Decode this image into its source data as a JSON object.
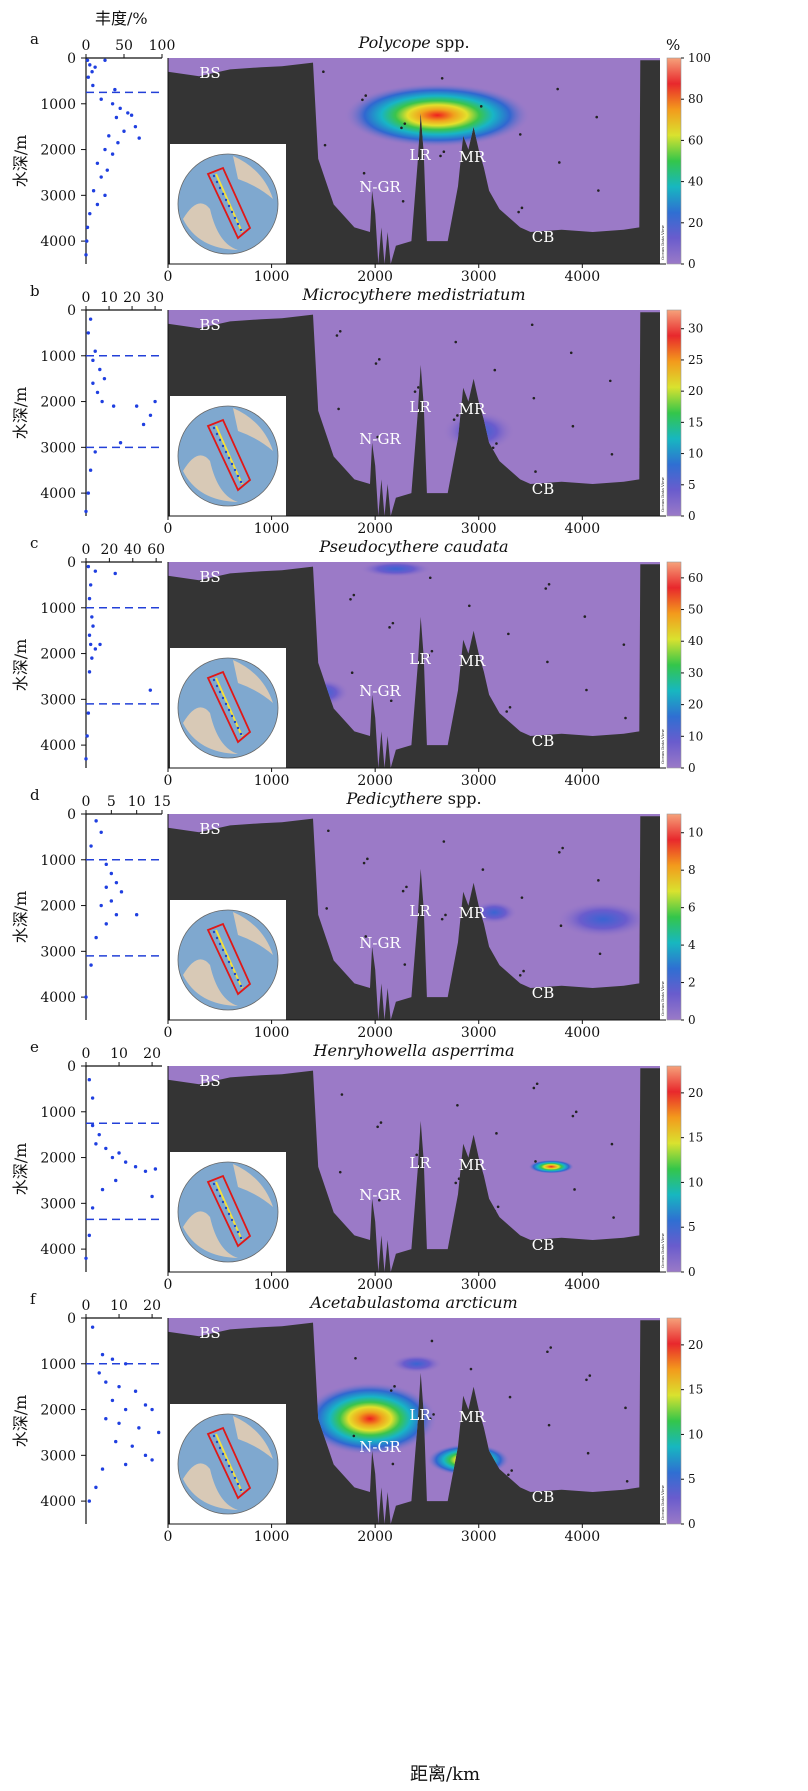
{
  "labels": {
    "top_axis_title": "丰度/%",
    "y_axis_title": "水深/m",
    "x_axis_title": "距离/km",
    "colorbar_unit": "%",
    "odv_credit": "Ocean Data View"
  },
  "colors": {
    "seafloor": "#343434",
    "water": "#9b7ac7",
    "scatter": "#1f3fe0",
    "dash": "#2340d8",
    "colorbar_stops": [
      "#9b7ac7",
      "#6a5ccd",
      "#2f6fd2",
      "#17b7c0",
      "#34c64a",
      "#d9e22f",
      "#f39a1c",
      "#e8282c",
      "#f6a27a"
    ]
  },
  "chart_data": [
    {
      "type": "scatter",
      "panel": "a",
      "title": "Polycope spp.",
      "title_italic": "Polycope",
      "title_suffix": " spp.",
      "abundance_ticks": [
        "0",
        "50",
        "100"
      ],
      "abundance_max": 100,
      "dashed_depths": [
        750
      ],
      "colorbar_ticks": [
        "0",
        "20",
        "40",
        "60",
        "80",
        "100"
      ],
      "colorbar_max": 100,
      "scatter_points": [
        [
          2,
          50
        ],
        [
          5,
          150
        ],
        [
          8,
          300
        ],
        [
          3,
          420
        ],
        [
          12,
          200
        ],
        [
          9,
          600
        ],
        [
          25,
          50
        ],
        [
          38,
          690
        ],
        [
          20,
          900
        ],
        [
          35,
          1000
        ],
        [
          45,
          1100
        ],
        [
          55,
          1200
        ],
        [
          40,
          1300
        ],
        [
          60,
          1250
        ],
        [
          65,
          1500
        ],
        [
          50,
          1600
        ],
        [
          30,
          1700
        ],
        [
          70,
          1750
        ],
        [
          42,
          1850
        ],
        [
          25,
          2000
        ],
        [
          35,
          2100
        ],
        [
          15,
          2300
        ],
        [
          28,
          2450
        ],
        [
          20,
          2600
        ],
        [
          10,
          2900
        ],
        [
          25,
          3000
        ],
        [
          15,
          3200
        ],
        [
          5,
          3400
        ],
        [
          2,
          3700
        ],
        [
          1,
          4000
        ],
        [
          0,
          4300
        ]
      ],
      "hotspots": [
        {
          "x": 2600,
          "y": 1250,
          "rx": 900,
          "ry": 700,
          "peak": 0.95
        }
      ],
      "region_labels": [
        "BS",
        "LR",
        "MR",
        "N-GR",
        "CB"
      ]
    },
    {
      "type": "scatter",
      "panel": "b",
      "title": "Microcythere medistriatum",
      "title_italic": "Microcythere medistriatum",
      "title_suffix": "",
      "abundance_ticks": [
        "0",
        "10",
        "20",
        "30"
      ],
      "abundance_max": 33,
      "dashed_depths": [
        1000,
        3000
      ],
      "colorbar_ticks": [
        "0",
        "5",
        "10",
        "15",
        "20",
        "25",
        "30"
      ],
      "colorbar_max": 33,
      "scatter_points": [
        [
          2,
          200
        ],
        [
          1,
          500
        ],
        [
          4,
          900
        ],
        [
          3,
          1100
        ],
        [
          6,
          1300
        ],
        [
          8,
          1500
        ],
        [
          3,
          1600
        ],
        [
          5,
          1800
        ],
        [
          7,
          2000
        ],
        [
          12,
          2100
        ],
        [
          22,
          2100
        ],
        [
          28,
          2300
        ],
        [
          25,
          2500
        ],
        [
          30,
          2000
        ],
        [
          15,
          2900
        ],
        [
          4,
          3100
        ],
        [
          2,
          3500
        ],
        [
          1,
          4000
        ],
        [
          0,
          4400
        ]
      ],
      "hotspots": [
        {
          "x": 3000,
          "y": 2650,
          "rx": 350,
          "ry": 450,
          "peak": 0.45
        }
      ],
      "region_labels": [
        "BS",
        "LR",
        "MR",
        "N-GR",
        "CB"
      ]
    },
    {
      "type": "scatter",
      "panel": "c",
      "title": "Pseudocythere caudata",
      "title_italic": "Pseudocythere caudata",
      "title_suffix": "",
      "abundance_ticks": [
        "0",
        "20",
        "40",
        "60"
      ],
      "abundance_max": 65,
      "dashed_depths": [
        1000,
        3100
      ],
      "colorbar_ticks": [
        "0",
        "10",
        "20",
        "30",
        "40",
        "50",
        "60"
      ],
      "colorbar_max": 65,
      "scatter_points": [
        [
          2,
          100
        ],
        [
          8,
          200
        ],
        [
          25,
          250
        ],
        [
          4,
          500
        ],
        [
          3,
          800
        ],
        [
          5,
          1200
        ],
        [
          6,
          1400
        ],
        [
          3,
          1600
        ],
        [
          4,
          1800
        ],
        [
          8,
          1900
        ],
        [
          12,
          1800
        ],
        [
          5,
          2100
        ],
        [
          3,
          2400
        ],
        [
          55,
          2800
        ],
        [
          2,
          3300
        ],
        [
          1,
          3800
        ],
        [
          0,
          4300
        ]
      ],
      "hotspots": [
        {
          "x": 1500,
          "y": 2850,
          "rx": 250,
          "ry": 300,
          "peak": 0.35
        },
        {
          "x": 2200,
          "y": 150,
          "rx": 350,
          "ry": 180,
          "peak": 0.25
        }
      ],
      "region_labels": [
        "BS",
        "LR",
        "MR",
        "N-GR",
        "CB"
      ]
    },
    {
      "type": "scatter",
      "panel": "d",
      "title": "Pedicythere spp.",
      "title_italic": "Pedicythere",
      "title_suffix": " spp.",
      "abundance_ticks": [
        "0",
        "5",
        "10",
        "15"
      ],
      "abundance_max": 15,
      "dashed_depths": [
        1000,
        3100
      ],
      "colorbar_ticks": [
        "0",
        "2",
        "4",
        "6",
        "8",
        "10"
      ],
      "colorbar_max": 11,
      "scatter_points": [
        [
          2,
          150
        ],
        [
          3,
          400
        ],
        [
          1,
          700
        ],
        [
          4,
          1100
        ],
        [
          5,
          1300
        ],
        [
          6,
          1500
        ],
        [
          4,
          1600
        ],
        [
          7,
          1700
        ],
        [
          5,
          1900
        ],
        [
          3,
          2000
        ],
        [
          6,
          2200
        ],
        [
          10,
          2200
        ],
        [
          4,
          2400
        ],
        [
          2,
          2700
        ],
        [
          1,
          3300
        ],
        [
          0,
          4000
        ]
      ],
      "hotspots": [
        {
          "x": 4200,
          "y": 2300,
          "rx": 450,
          "ry": 400,
          "peak": 0.35
        },
        {
          "x": 3150,
          "y": 2150,
          "rx": 220,
          "ry": 250,
          "peak": 0.22
        }
      ],
      "region_labels": [
        "BS",
        "LR",
        "MR",
        "N-GR",
        "CB"
      ]
    },
    {
      "type": "scatter",
      "panel": "e",
      "title": "Henryhowella asperrima",
      "title_italic": "Henryhowella asperrima",
      "title_suffix": "",
      "abundance_ticks": [
        "0",
        "10",
        "20"
      ],
      "abundance_max": 23,
      "dashed_depths": [
        1250,
        3350
      ],
      "colorbar_ticks": [
        "0",
        "5",
        "10",
        "15",
        "20"
      ],
      "colorbar_max": 23,
      "scatter_points": [
        [
          1,
          300
        ],
        [
          2,
          700
        ],
        [
          2,
          1300
        ],
        [
          4,
          1500
        ],
        [
          3,
          1700
        ],
        [
          6,
          1800
        ],
        [
          10,
          1900
        ],
        [
          8,
          2000
        ],
        [
          12,
          2100
        ],
        [
          15,
          2200
        ],
        [
          18,
          2300
        ],
        [
          21,
          2250
        ],
        [
          9,
          2500
        ],
        [
          5,
          2700
        ],
        [
          20,
          2850
        ],
        [
          2,
          3100
        ],
        [
          1,
          3700
        ],
        [
          0,
          4200
        ]
      ],
      "hotspots": [
        {
          "x": 3700,
          "y": 2200,
          "rx": 220,
          "ry": 150,
          "peak": 0.6
        }
      ],
      "region_labels": [
        "BS",
        "LR",
        "MR",
        "N-GR",
        "CB"
      ]
    },
    {
      "type": "scatter",
      "panel": "f",
      "title": "Acetabulastoma arcticum",
      "title_italic": "Acetabulastoma arcticum",
      "title_suffix": "",
      "abundance_ticks": [
        "0",
        "10",
        "20"
      ],
      "abundance_max": 23,
      "dashed_depths": [
        1000
      ],
      "colorbar_ticks": [
        "0",
        "5",
        "10",
        "15",
        "20"
      ],
      "colorbar_max": 23,
      "scatter_points": [
        [
          2,
          200
        ],
        [
          5,
          800
        ],
        [
          8,
          900
        ],
        [
          12,
          1000
        ],
        [
          4,
          1200
        ],
        [
          6,
          1400
        ],
        [
          10,
          1500
        ],
        [
          15,
          1600
        ],
        [
          8,
          1800
        ],
        [
          18,
          1900
        ],
        [
          12,
          2000
        ],
        [
          20,
          2000
        ],
        [
          6,
          2200
        ],
        [
          10,
          2300
        ],
        [
          16,
          2400
        ],
        [
          22,
          2500
        ],
        [
          9,
          2700
        ],
        [
          14,
          2800
        ],
        [
          18,
          3000
        ],
        [
          20,
          3100
        ],
        [
          12,
          3200
        ],
        [
          5,
          3300
        ],
        [
          3,
          3700
        ],
        [
          1,
          4000
        ]
      ],
      "hotspots": [
        {
          "x": 1950,
          "y": 2200,
          "rx": 650,
          "ry": 800,
          "peak": 0.85
        },
        {
          "x": 2900,
          "y": 3100,
          "rx": 400,
          "ry": 350,
          "peak": 0.65
        },
        {
          "x": 2400,
          "y": 1000,
          "rx": 250,
          "ry": 200,
          "peak": 0.3
        }
      ],
      "region_labels": [
        "BS",
        "LR",
        "MR",
        "N-GR",
        "CB"
      ]
    }
  ],
  "panel_letters": [
    "a",
    "b",
    "c",
    "d",
    "e",
    "f"
  ],
  "depth_ticks": [
    "0",
    "1000",
    "2000",
    "3000",
    "4000"
  ],
  "distance_ticks": [
    "0",
    "1000",
    "2000",
    "3000",
    "4000"
  ]
}
